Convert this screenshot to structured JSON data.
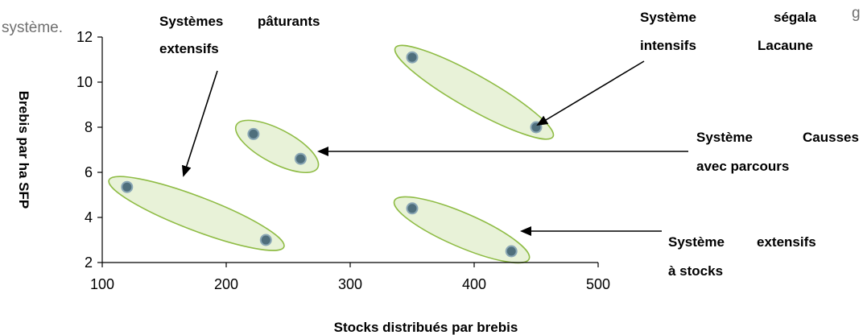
{
  "context_text": {
    "left": "système.",
    "right": "g"
  },
  "chart_data": {
    "type": "scatter",
    "title": "",
    "xlabel": "Stocks distribués par brebis",
    "ylabel": "Brebis par ha SFP",
    "xlim": [
      100,
      500
    ],
    "ylim": [
      2,
      12
    ],
    "x_ticks": [
      100,
      200,
      300,
      400,
      500
    ],
    "y_ticks": [
      2,
      4,
      6,
      8,
      10,
      12
    ],
    "grid": false,
    "marker_color": "#4f6f7c",
    "ellipse_fill": "#e8f2d8",
    "ellipse_stroke": "#8fbc45",
    "points": [
      {
        "x": 120,
        "y": 5.35
      },
      {
        "x": 232,
        "y": 3.0
      },
      {
        "x": 222,
        "y": 7.7
      },
      {
        "x": 260,
        "y": 6.6
      },
      {
        "x": 350,
        "y": 11.1
      },
      {
        "x": 450,
        "y": 8.0
      },
      {
        "x": 350,
        "y": 4.4
      },
      {
        "x": 430,
        "y": 2.5
      }
    ],
    "groups": [
      {
        "label_lines": [
          "Systèmes",
          "pâturants",
          "extensifs"
        ],
        "points": [
          0,
          1
        ]
      },
      {
        "label_lines": [
          "Système",
          "Causses",
          "avec parcours"
        ],
        "points": [
          2,
          3
        ]
      },
      {
        "label_lines": [
          "Système",
          "ségala",
          "intensifs",
          "Lacaune"
        ],
        "points": [
          4,
          5
        ]
      },
      {
        "label_lines": [
          "Système",
          "extensifs",
          "à stocks"
        ],
        "points": [
          6,
          7
        ]
      }
    ]
  }
}
